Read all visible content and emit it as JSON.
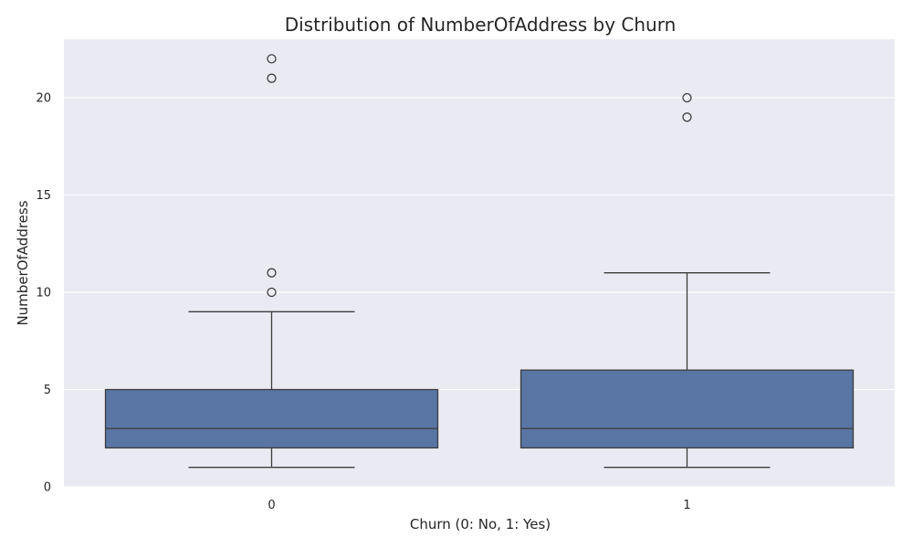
{
  "chart_data": {
    "type": "box",
    "title": "Distribution of NumberOfAddress by Churn",
    "xlabel": "Churn (0: No, 1: Yes)",
    "ylabel": "NumberOfAddress",
    "ylim": [
      0,
      23
    ],
    "yticks": [
      0,
      5,
      10,
      15,
      20
    ],
    "grid": true,
    "categories": [
      "0",
      "1"
    ],
    "boxes": [
      {
        "category": "0",
        "whisker_low": 1,
        "q1": 2,
        "median": 3,
        "q3": 5,
        "whisker_high": 9,
        "outliers": [
          10,
          11,
          21,
          22
        ]
      },
      {
        "category": "1",
        "whisker_low": 1,
        "q1": 2,
        "median": 3,
        "q3": 6,
        "whisker_high": 11,
        "outliers": [
          19,
          20
        ]
      }
    ],
    "colors": {
      "box": "#5975a4",
      "background": "#eaeaf2",
      "line": "#3d3d3d"
    }
  }
}
